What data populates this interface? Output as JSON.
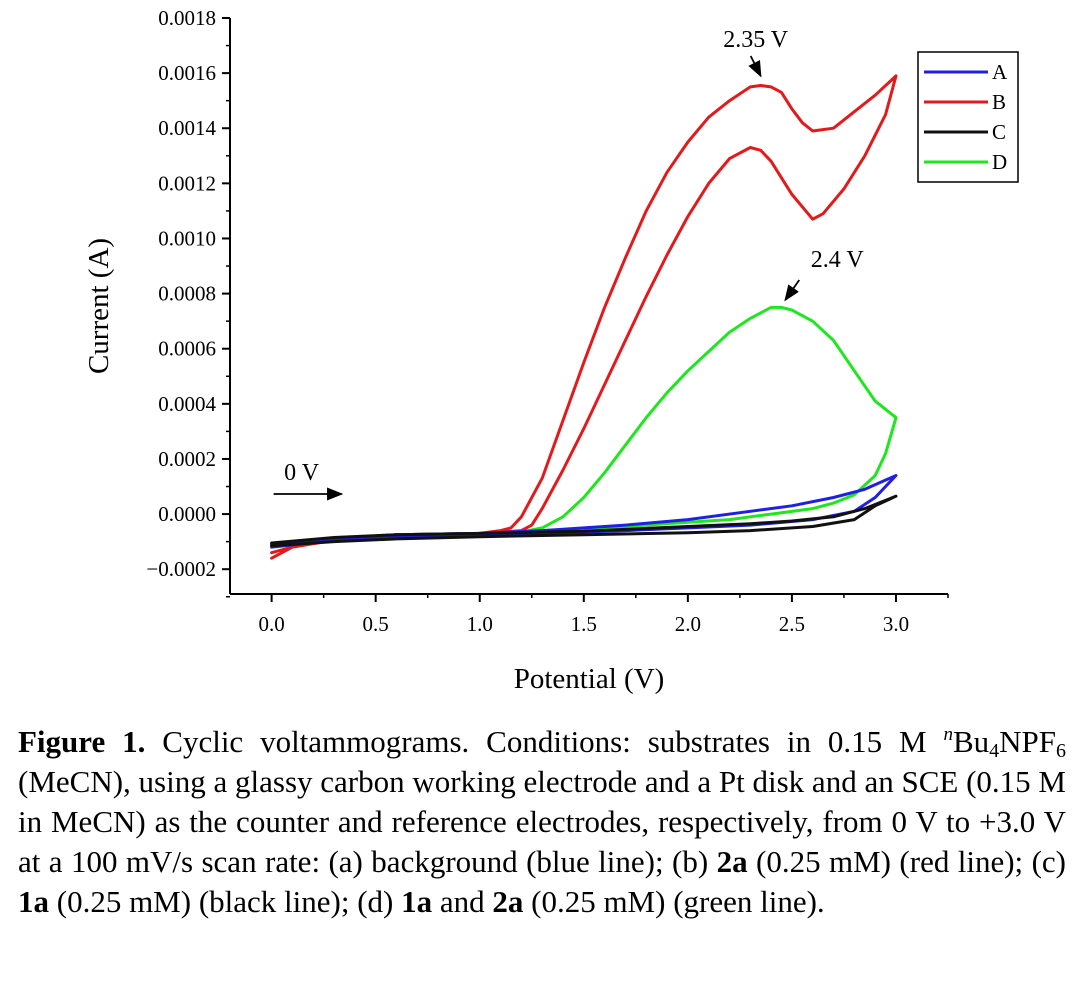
{
  "chart_data": {
    "type": "line",
    "title": "",
    "xlabel": "Potential (V)",
    "ylabel": "Current (A)",
    "xlim": [
      -0.2,
      3.25
    ],
    "ylim": [
      -0.00029,
      0.0018
    ],
    "x_ticks": [
      0.0,
      0.5,
      1.0,
      1.5,
      2.0,
      2.5,
      3.0
    ],
    "x_tick_labels": [
      "0.0",
      "0.5",
      "1.0",
      "1.5",
      "2.0",
      "2.5",
      "3.0"
    ],
    "y_ticks": [
      -0.0002,
      0.0,
      0.0002,
      0.0004,
      0.0006,
      0.0008,
      0.001,
      0.0012,
      0.0014,
      0.0016,
      0.0018
    ],
    "y_tick_labels": [
      "−0.0002",
      "0.0000",
      "0.0002",
      "0.0004",
      "0.0006",
      "0.0008",
      "0.0010",
      "0.0012",
      "0.0014",
      "0.0016",
      "0.0018"
    ],
    "grid": false,
    "legend_position": "top-right",
    "series": [
      {
        "name": "A",
        "color": "#1f1fe6",
        "forward": [
          [
            0.0,
            -0.00011
          ],
          [
            0.3,
            -9e-05
          ],
          [
            0.6,
            -7.5e-05
          ],
          [
            1.0,
            -7e-05
          ],
          [
            1.3,
            -6e-05
          ],
          [
            1.7,
            -4e-05
          ],
          [
            2.0,
            -2e-05
          ],
          [
            2.3,
            1e-05
          ],
          [
            2.5,
            3e-05
          ],
          [
            2.7,
            6e-05
          ],
          [
            2.85,
            9e-05
          ],
          [
            3.0,
            0.00014
          ]
        ],
        "reverse": [
          [
            3.0,
            0.00014
          ],
          [
            2.9,
            6e-05
          ],
          [
            2.8,
            1e-05
          ],
          [
            2.6,
            -2e-05
          ],
          [
            2.3,
            -4e-05
          ],
          [
            2.0,
            -5e-05
          ],
          [
            1.7,
            -6e-05
          ],
          [
            1.3,
            -7e-05
          ],
          [
            1.0,
            -7.5e-05
          ],
          [
            0.6,
            -8e-05
          ],
          [
            0.3,
            -9.5e-05
          ],
          [
            0.0,
            -0.00012
          ]
        ]
      },
      {
        "name": "B",
        "color": "#e31a1c",
        "forward": [
          [
            0.0,
            -0.00016
          ],
          [
            0.1,
            -0.00012
          ],
          [
            0.3,
            -9e-05
          ],
          [
            0.6,
            -7.5e-05
          ],
          [
            1.0,
            -7e-05
          ],
          [
            1.1,
            -6e-05
          ],
          [
            1.15,
            -5e-05
          ],
          [
            1.2,
            -1e-05
          ],
          [
            1.3,
            0.00013
          ],
          [
            1.4,
            0.00034
          ],
          [
            1.5,
            0.00055
          ],
          [
            1.6,
            0.00075
          ],
          [
            1.7,
            0.00093
          ],
          [
            1.8,
            0.0011
          ],
          [
            1.9,
            0.00124
          ],
          [
            2.0,
            0.00135
          ],
          [
            2.1,
            0.00144
          ],
          [
            2.2,
            0.0015
          ],
          [
            2.3,
            0.00155
          ],
          [
            2.35,
            0.001555
          ],
          [
            2.4,
            0.00155
          ],
          [
            2.45,
            0.00153
          ],
          [
            2.5,
            0.00147
          ],
          [
            2.55,
            0.00142
          ],
          [
            2.6,
            0.00139
          ],
          [
            2.7,
            0.0014
          ],
          [
            2.8,
            0.00146
          ],
          [
            2.9,
            0.00152
          ],
          [
            3.0,
            0.00159
          ]
        ],
        "reverse": [
          [
            3.0,
            0.00159
          ],
          [
            2.95,
            0.00145
          ],
          [
            2.85,
            0.0013
          ],
          [
            2.75,
            0.00118
          ],
          [
            2.65,
            0.00109
          ],
          [
            2.6,
            0.00107
          ],
          [
            2.5,
            0.00116
          ],
          [
            2.4,
            0.00128
          ],
          [
            2.35,
            0.00132
          ],
          [
            2.3,
            0.00133
          ],
          [
            2.2,
            0.00129
          ],
          [
            2.1,
            0.0012
          ],
          [
            2.0,
            0.00108
          ],
          [
            1.9,
            0.00094
          ],
          [
            1.8,
            0.00079
          ],
          [
            1.7,
            0.00063
          ],
          [
            1.6,
            0.00047
          ],
          [
            1.5,
            0.00031
          ],
          [
            1.4,
            0.00016
          ],
          [
            1.3,
            2e-05
          ],
          [
            1.25,
            -4e-05
          ],
          [
            1.2,
            -6e-05
          ],
          [
            1.0,
            -7.2e-05
          ],
          [
            0.6,
            -8e-05
          ],
          [
            0.3,
            -9.5e-05
          ],
          [
            0.1,
            -0.00012
          ],
          [
            0.0,
            -0.00014
          ]
        ]
      },
      {
        "name": "C",
        "color": "#111111",
        "forward": [
          [
            0.0,
            -0.000105
          ],
          [
            0.3,
            -8.5e-05
          ],
          [
            0.6,
            -7.5e-05
          ],
          [
            1.0,
            -7e-05
          ],
          [
            1.5,
            -6.2e-05
          ],
          [
            2.0,
            -4.5e-05
          ],
          [
            2.3,
            -3.5e-05
          ],
          [
            2.5,
            -2.5e-05
          ],
          [
            2.7,
            -1e-05
          ],
          [
            2.85,
            2e-05
          ],
          [
            3.0,
            6.5e-05
          ]
        ],
        "reverse": [
          [
            3.0,
            6.5e-05
          ],
          [
            2.9,
            3e-05
          ],
          [
            2.8,
            -2e-05
          ],
          [
            2.6,
            -4.5e-05
          ],
          [
            2.3,
            -6e-05
          ],
          [
            2.0,
            -6.8e-05
          ],
          [
            1.5,
            -7.5e-05
          ],
          [
            1.0,
            -8.2e-05
          ],
          [
            0.6,
            -9e-05
          ],
          [
            0.3,
            -0.0001
          ],
          [
            0.0,
            -0.000115
          ]
        ]
      },
      {
        "name": "D",
        "color": "#1fe61f",
        "forward": [
          [
            0.0,
            -0.00011
          ],
          [
            0.3,
            -9e-05
          ],
          [
            0.6,
            -7.5e-05
          ],
          [
            1.0,
            -7e-05
          ],
          [
            1.2,
            -6.5e-05
          ],
          [
            1.3,
            -5e-05
          ],
          [
            1.4,
            -1e-05
          ],
          [
            1.5,
            6e-05
          ],
          [
            1.6,
            0.00015
          ],
          [
            1.7,
            0.00025
          ],
          [
            1.8,
            0.00035
          ],
          [
            1.9,
            0.00044
          ],
          [
            2.0,
            0.00052
          ],
          [
            2.1,
            0.00059
          ],
          [
            2.2,
            0.00066
          ],
          [
            2.3,
            0.00071
          ],
          [
            2.4,
            0.00075
          ],
          [
            2.45,
            0.00075
          ],
          [
            2.5,
            0.00074
          ],
          [
            2.6,
            0.0007
          ],
          [
            2.7,
            0.00063
          ],
          [
            2.8,
            0.00052
          ],
          [
            2.9,
            0.00041
          ],
          [
            3.0,
            0.00035
          ]
        ],
        "reverse": [
          [
            3.0,
            0.00035
          ],
          [
            2.95,
            0.00022
          ],
          [
            2.9,
            0.00014
          ],
          [
            2.8,
            7e-05
          ],
          [
            2.7,
            4e-05
          ],
          [
            2.6,
            2e-05
          ],
          [
            2.4,
            0.0
          ],
          [
            2.2,
            -2e-05
          ],
          [
            2.0,
            -3e-05
          ],
          [
            1.6,
            -5e-05
          ],
          [
            1.3,
            -6e-05
          ],
          [
            1.0,
            -7e-05
          ],
          [
            0.6,
            -8e-05
          ],
          [
            0.3,
            -9e-05
          ],
          [
            0.0,
            -0.00011
          ]
        ]
      }
    ],
    "annotations": [
      {
        "text": "2.35 V",
        "x": 2.35,
        "y": 0.00159
      },
      {
        "text": "2.4 V",
        "x": 2.42,
        "y": 0.00078
      },
      {
        "text": "0 V",
        "x": 0.0,
        "y": 7e-05
      }
    ]
  },
  "caption": {
    "label": "Figure 1.",
    "s1": " Cyclic voltammograms. Conditions: substrates in 0.15 M ",
    "sup_n": "n",
    "bu": "Bu",
    "sub4": "4",
    "npf": "NPF",
    "sub6": "6",
    "s2": " (MeCN), using a glassy carbon working electrode and a Pt disk and an SCE (0.15 M in MeCN) as the counter and reference electrodes, respectively, from 0 V to +3.0 V at a 100 mV/s scan rate: (a) background (blue line); (b) ",
    "c2a_1": "2a",
    "s3": " (0.25 mM) (red line); (c) ",
    "c1a_1": "1a",
    "s4": " (0.25 mM) (black line); (d) ",
    "c1a_2": "1a",
    "s5": " and ",
    "c2a_2": "2a",
    "s6": " (0.25 mM) (green line)."
  }
}
